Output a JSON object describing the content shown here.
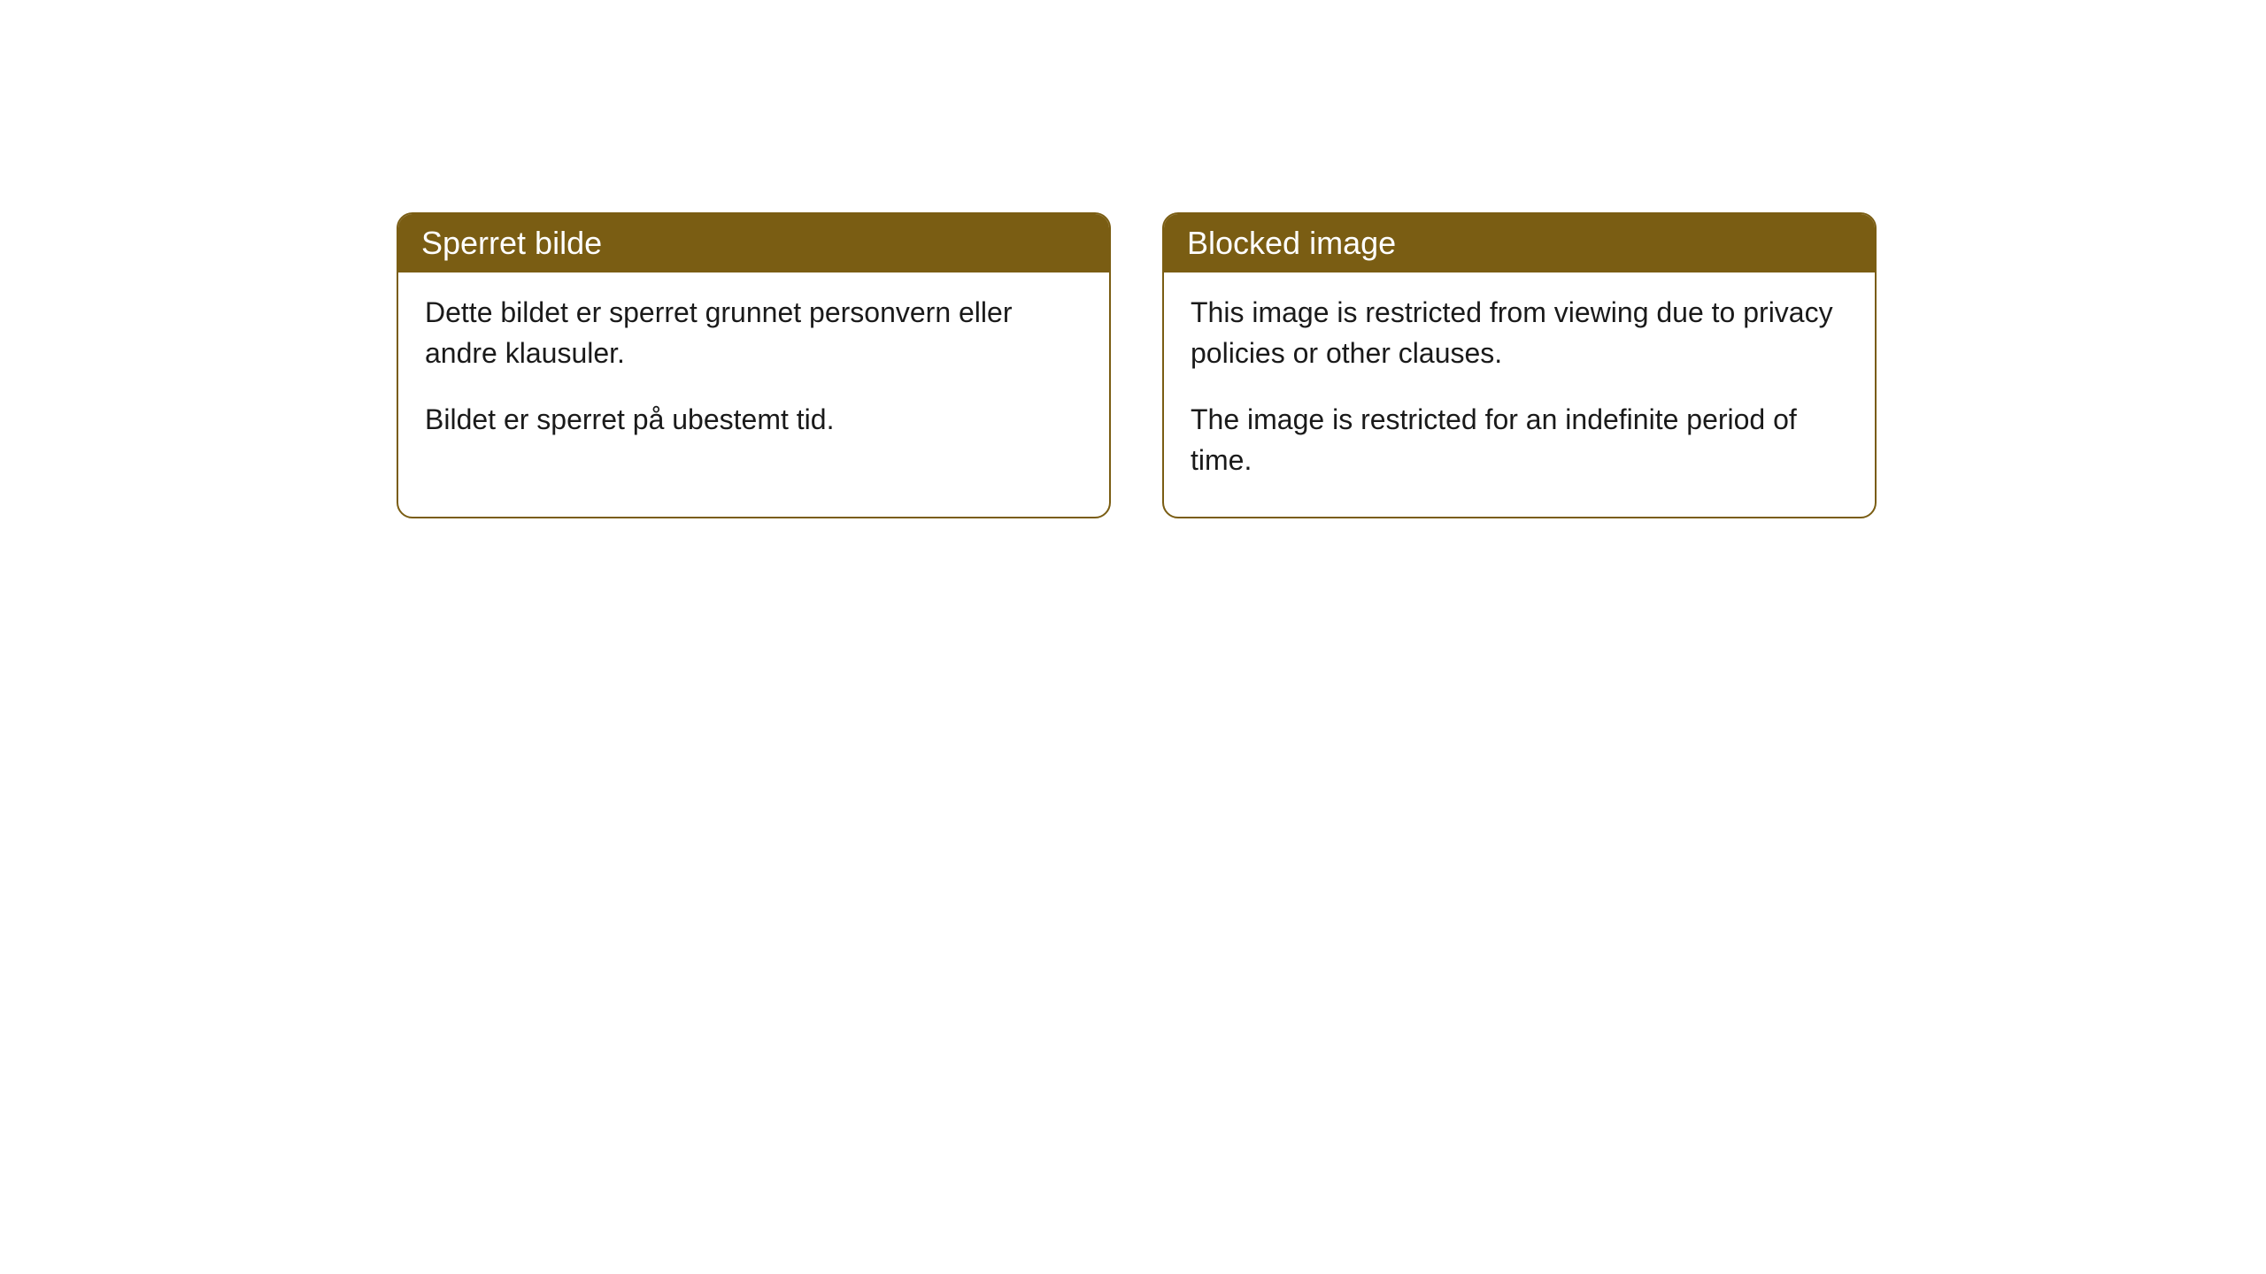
{
  "cards": [
    {
      "title": "Sperret bilde",
      "paragraph1": "Dette bildet er sperret grunnet personvern eller andre klausuler.",
      "paragraph2": "Bildet er sperret på ubestemt tid."
    },
    {
      "title": "Blocked image",
      "paragraph1": "This image is restricted from viewing due to privacy policies or other clauses.",
      "paragraph2": "The image is restricted for an indefinite period of time."
    }
  ],
  "styling": {
    "header_bg": "#7a5d13",
    "header_text_color": "#ffffff",
    "border_color": "#7a5d13",
    "body_bg": "#ffffff",
    "body_text_color": "#1a1a1a",
    "border_radius": 18,
    "header_fontsize": 36,
    "body_fontsize": 32
  }
}
